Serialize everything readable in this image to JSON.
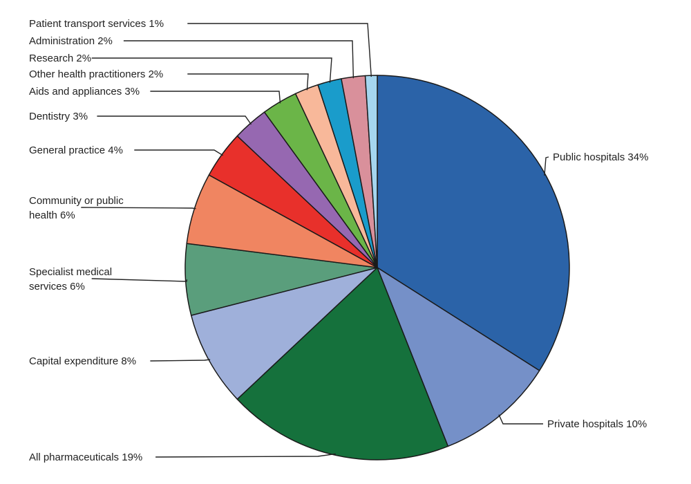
{
  "chart_data": {
    "type": "pie",
    "title": "",
    "unit": "%",
    "start_angle_deg": 0,
    "direction": "clockwise",
    "slices": [
      {
        "label": "Public hospitals",
        "value": 34,
        "display": "Public hospitals 34%",
        "color": "#2b63a8"
      },
      {
        "label": "Private hospitals",
        "value": 10,
        "display": "Private hospitals 10%",
        "color": "#7590c8"
      },
      {
        "label": "All pharmaceuticals",
        "value": 19,
        "display": "All pharmaceuticals 19%",
        "color": "#15713c"
      },
      {
        "label": "Capital expenditure",
        "value": 8,
        "display": "Capital expenditure 8%",
        "color": "#9fb0da"
      },
      {
        "label": "Specialist medical services",
        "value": 6,
        "display": [
          "Specialist medical",
          "services 6%"
        ],
        "color": "#5a9e7c"
      },
      {
        "label": "Community or public health",
        "value": 6,
        "display": [
          "Community or public",
          "health 6%"
        ],
        "color": "#f08561"
      },
      {
        "label": "General practice",
        "value": 4,
        "display": "General practice 4%",
        "color": "#e8302b"
      },
      {
        "label": "Dentistry",
        "value": 3,
        "display": "Dentistry 3%",
        "color": "#9668b1"
      },
      {
        "label": "Aids and appliances",
        "value": 3,
        "display": "Aids and appliances 3%",
        "color": "#6bb548"
      },
      {
        "label": "Other health practitioners",
        "value": 2,
        "display": "Other health practitioners 2%",
        "color": "#f8b89a"
      },
      {
        "label": "Research",
        "value": 2,
        "display": "Research 2%",
        "color": "#1a9ccb"
      },
      {
        "label": "Administration",
        "value": 2,
        "display": "Administration 2%",
        "color": "#d9909b"
      },
      {
        "label": "Patient transport services",
        "value": 1,
        "display": "Patient transport services 1%",
        "color": "#a5d6ef"
      }
    ]
  }
}
